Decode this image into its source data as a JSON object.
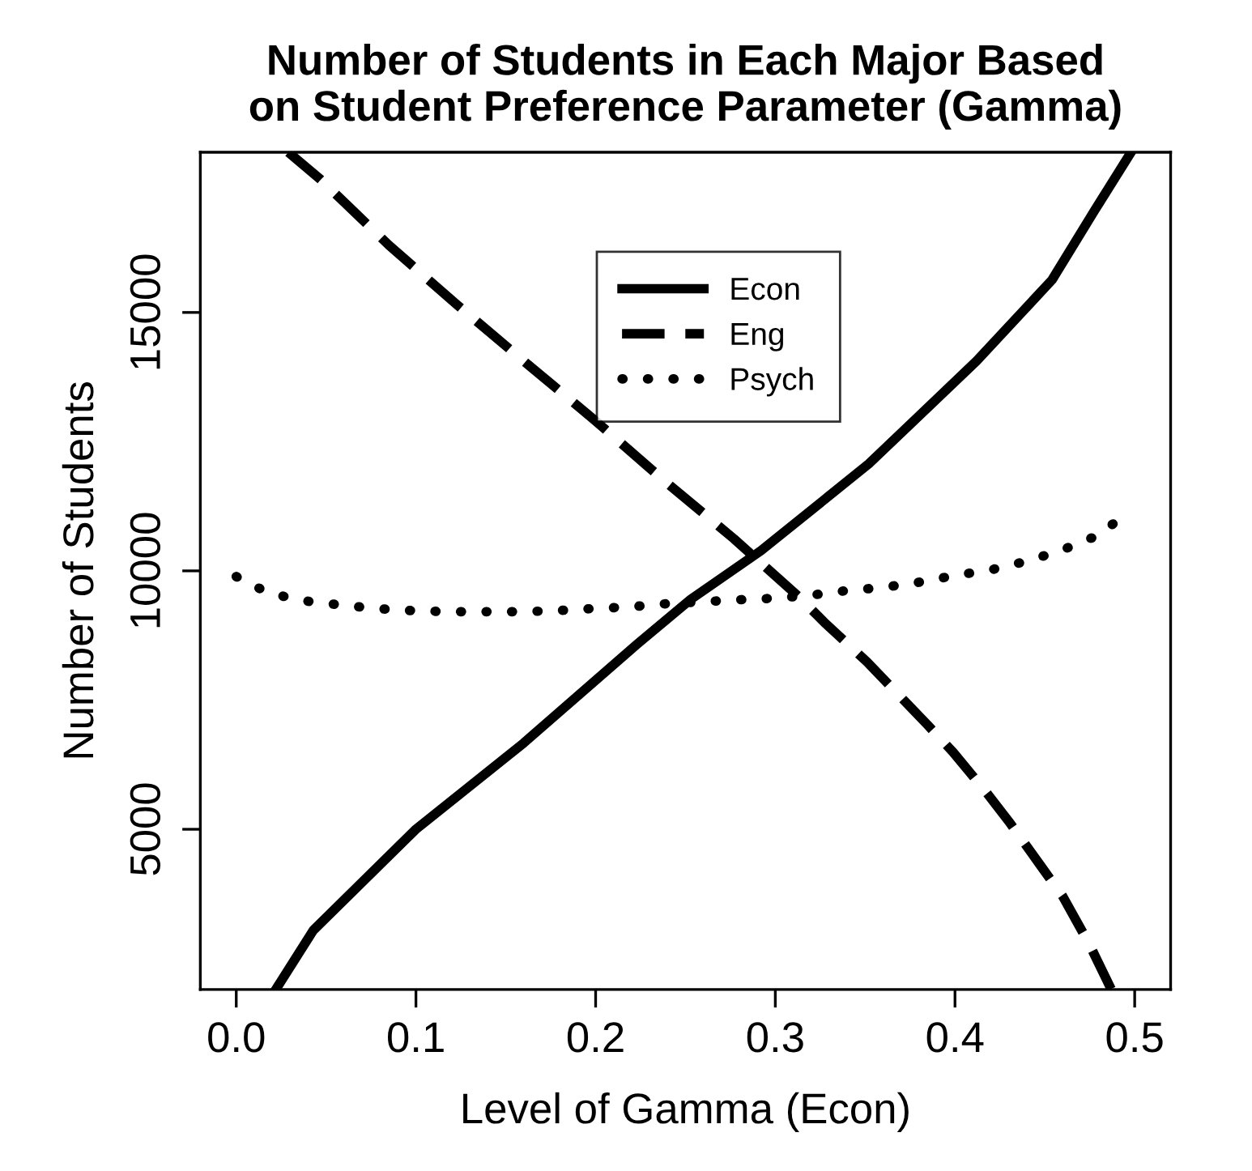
{
  "chart_data": {
    "type": "line",
    "title": "Number of Students in Each Major Based\non Student Preference Parameter (Gamma)",
    "xlabel": "Level of Gamma (Econ)",
    "ylabel": "Number of Students",
    "xlim": [
      -0.02,
      0.52
    ],
    "ylim": [
      1900,
      18100
    ],
    "xticks": [
      {
        "value": 0,
        "label": "0.0"
      },
      {
        "value": 0.1,
        "label": "0.1"
      },
      {
        "value": 0.2,
        "label": "0.2"
      },
      {
        "value": 0.3,
        "label": "0.3"
      },
      {
        "value": 0.4,
        "label": "0.4"
      },
      {
        "value": 0.5,
        "label": "0.5"
      }
    ],
    "yticks": [
      5000,
      10000,
      15000
    ],
    "legend": "top",
    "series": [
      {
        "name": "Econ",
        "color": "#000000",
        "line_style": "solid",
        "x": [
          0.022,
          0.043,
          0.1,
          0.16,
          0.223,
          0.253,
          0.292,
          0.352,
          0.412,
          0.454,
          0.478,
          0.498
        ],
        "values": [
          1900,
          3050,
          5000,
          6670,
          8580,
          9450,
          10390,
          12070,
          14060,
          15630,
          16990,
          18100
        ]
      },
      {
        "name": "Eng",
        "color": "#000000",
        "line_style": "dashed",
        "x": [
          0.029,
          0.047,
          0.085,
          0.1225,
          0.16,
          0.199,
          0.238,
          0.277,
          0.313,
          0.328,
          0.351,
          0.364,
          0.385,
          0.399,
          0.418,
          0.43,
          0.448,
          0.46,
          0.475,
          0.487
        ],
        "values": [
          18100,
          17570,
          16300,
          15160,
          14060,
          12930,
          11750,
          10620,
          9500,
          8980,
          8240,
          7770,
          7010,
          6490,
          5690,
          5150,
          4280,
          3700,
          2760,
          1900
        ]
      },
      {
        "name": "Psych",
        "color": "#000000",
        "line_style": "dotted",
        "x": [
          0,
          0.018,
          0.038,
          0.058,
          0.078,
          0.0985,
          0.118,
          0.138,
          0.158,
          0.178,
          0.198,
          0.218,
          0.238,
          0.259,
          0.279,
          0.3,
          0.32,
          0.34,
          0.36,
          0.38,
          0.4,
          0.42,
          0.439,
          0.458,
          0.477,
          0.494
        ],
        "values": [
          9890,
          9570,
          9420,
          9340,
          9270,
          9230,
          9210,
          9210,
          9210,
          9230,
          9270,
          9300,
          9360,
          9400,
          9440,
          9470,
          9530,
          9620,
          9680,
          9780,
          9910,
          10020,
          10180,
          10380,
          10650,
          11050
        ]
      }
    ]
  }
}
